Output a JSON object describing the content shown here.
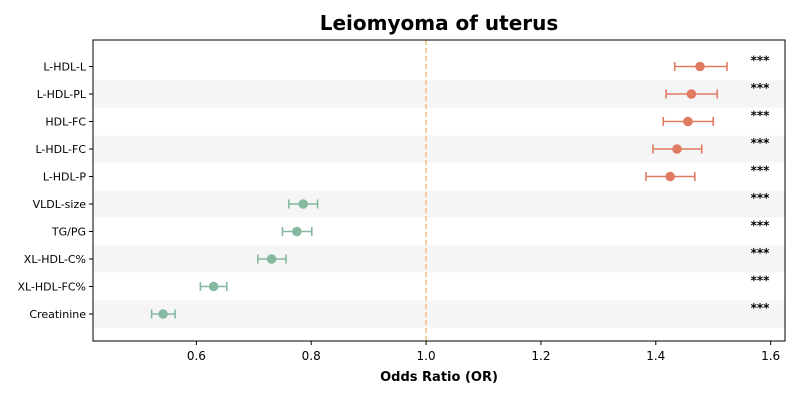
{
  "chart_data": {
    "type": "forest",
    "title": "Leiomyoma of uterus",
    "xlabel": "Odds Ratio (OR)",
    "ylabel": "",
    "xlim": [
      0.42,
      1.625
    ],
    "xticks": [
      0.6,
      0.8,
      1.0,
      1.2,
      1.4,
      1.6
    ],
    "xtick_labels": [
      "0.6",
      "0.8",
      "1.0",
      "1.2",
      "1.4",
      "1.6"
    ],
    "reference_line": 1.0,
    "grid": false,
    "colors": {
      "positive": "#e07b62",
      "negative": "#85b9a0",
      "reference": "#f5c089",
      "band": "#f5f5f5"
    },
    "rows": [
      {
        "label": "L-HDL-L",
        "or": 1.477,
        "lo": 1.433,
        "hi": 1.524,
        "sig": "***"
      },
      {
        "label": "L-HDL-PL",
        "or": 1.462,
        "lo": 1.418,
        "hi": 1.507,
        "sig": "***"
      },
      {
        "label": "HDL-FC",
        "or": 1.456,
        "lo": 1.413,
        "hi": 1.5,
        "sig": "***"
      },
      {
        "label": "L-HDL-FC",
        "or": 1.437,
        "lo": 1.395,
        "hi": 1.48,
        "sig": "***"
      },
      {
        "label": "L-HDL-P",
        "or": 1.425,
        "lo": 1.383,
        "hi": 1.468,
        "sig": "***"
      },
      {
        "label": "VLDL-size",
        "or": 0.786,
        "lo": 0.761,
        "hi": 0.811,
        "sig": "***"
      },
      {
        "label": "TG/PG",
        "or": 0.775,
        "lo": 0.75,
        "hi": 0.801,
        "sig": "***"
      },
      {
        "label": "XL-HDL-C%",
        "or": 0.731,
        "lo": 0.707,
        "hi": 0.756,
        "sig": "***"
      },
      {
        "label": "XL-HDL-FC%",
        "or": 0.63,
        "lo": 0.607,
        "hi": 0.653,
        "sig": "***"
      },
      {
        "label": "Creatinine",
        "or": 0.542,
        "lo": 0.522,
        "hi": 0.563,
        "sig": "***"
      }
    ]
  }
}
